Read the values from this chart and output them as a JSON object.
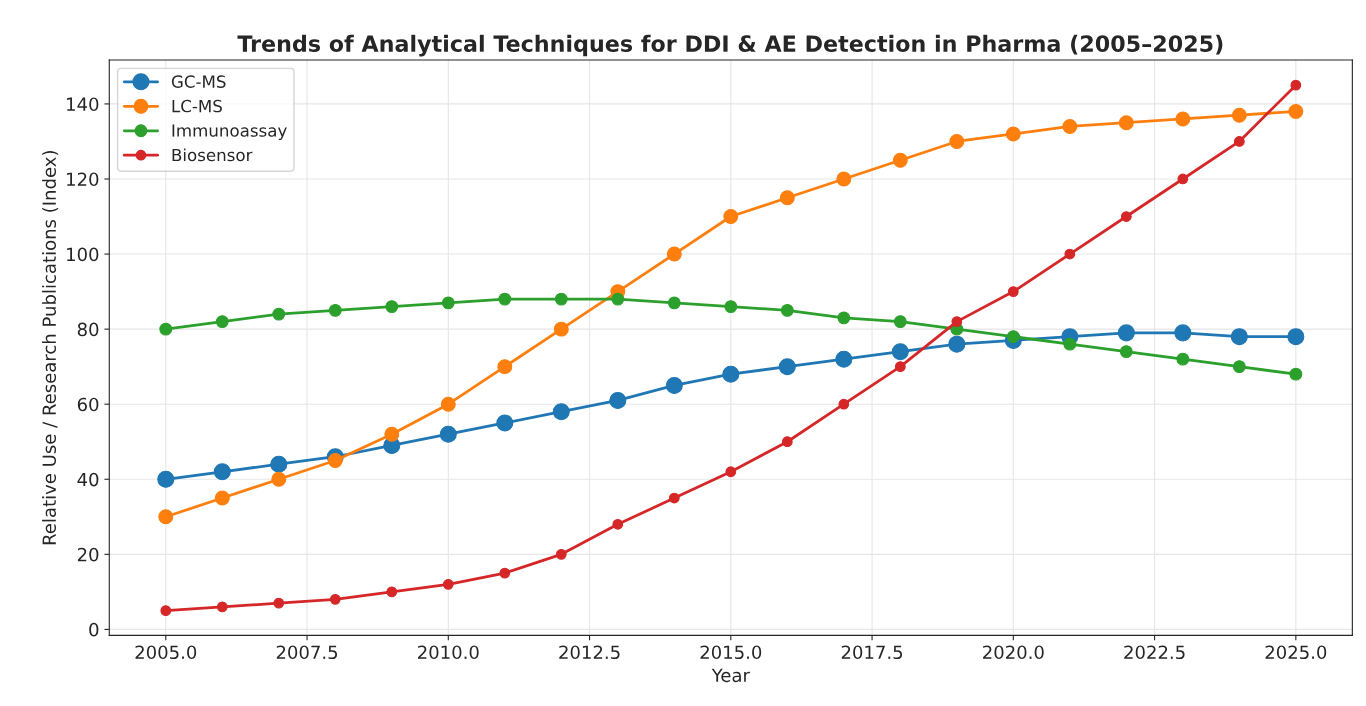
{
  "chart_data": {
    "type": "line",
    "title": "Trends of Analytical Techniques for DDI & AE Detection in Pharma (2005–2025)",
    "xlabel": "Year",
    "ylabel": "Relative Use / Research Publications (Index)",
    "x": [
      2005,
      2006,
      2007,
      2008,
      2009,
      2010,
      2011,
      2012,
      2013,
      2014,
      2015,
      2016,
      2017,
      2018,
      2019,
      2020,
      2021,
      2022,
      2023,
      2024,
      2025
    ],
    "series": [
      {
        "name": "GC-MS",
        "color": "#1f77b4",
        "values": [
          40,
          42,
          44,
          46,
          49,
          52,
          55,
          58,
          61,
          65,
          68,
          70,
          72,
          74,
          76,
          77,
          78,
          79,
          79,
          78,
          78
        ]
      },
      {
        "name": "LC-MS",
        "color": "#ff7f0e",
        "values": [
          30,
          35,
          40,
          45,
          52,
          60,
          70,
          80,
          90,
          100,
          110,
          115,
          120,
          125,
          130,
          132,
          134,
          135,
          136,
          137,
          138
        ]
      },
      {
        "name": "Immunoassay",
        "color": "#2ca02c",
        "values": [
          80,
          82,
          84,
          85,
          86,
          87,
          88,
          88,
          88,
          87,
          86,
          85,
          83,
          82,
          80,
          78,
          76,
          74,
          72,
          70,
          68
        ]
      },
      {
        "name": "Biosensor",
        "color": "#d62728",
        "values": [
          5,
          6,
          7,
          8,
          10,
          12,
          15,
          20,
          28,
          35,
          42,
          50,
          60,
          70,
          82,
          90,
          100,
          110,
          120,
          130,
          145
        ]
      }
    ],
    "xlim": [
      2004,
      2026
    ],
    "ylim": [
      -1.6,
      151.7
    ],
    "xticks": [
      {
        "value": 2005,
        "label": "2005.0"
      },
      {
        "value": 2007.5,
        "label": "2007.5"
      },
      {
        "value": 2010,
        "label": "2010.0"
      },
      {
        "value": 2012.5,
        "label": "2012.5"
      },
      {
        "value": 2015,
        "label": "2015.0"
      },
      {
        "value": 2017.5,
        "label": "2017.5"
      },
      {
        "value": 2020,
        "label": "2020.0"
      },
      {
        "value": 2022.5,
        "label": "2022.5"
      },
      {
        "value": 2025,
        "label": "2025.0"
      }
    ],
    "yticks": [
      0,
      20,
      40,
      60,
      80,
      100,
      120,
      140
    ],
    "grid": true,
    "legend": "top left",
    "marker": "circle",
    "line_style": "solid"
  }
}
